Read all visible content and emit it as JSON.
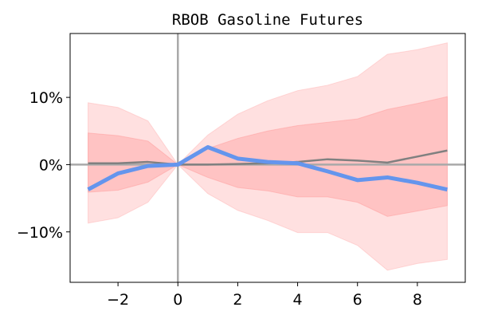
{
  "chart_data": {
    "type": "line",
    "title": "RBOB Gasoline Futures",
    "xlabel": "",
    "ylabel": "",
    "xlim": [
      -3.6,
      9.6
    ],
    "ylim": [
      -17.5,
      19.5
    ],
    "xticks": [
      -2,
      0,
      2,
      4,
      6,
      8
    ],
    "xtick_labels": [
      "−2",
      "0",
      "2",
      "4",
      "6",
      "8"
    ],
    "yticks": [
      -10,
      0,
      10
    ],
    "ytick_labels": [
      "−10%",
      "0%",
      "10%"
    ],
    "grid": false,
    "reference_lines": {
      "vertical_x": 0,
      "horizontal_y": 0
    },
    "x": [
      -3,
      -2,
      -1,
      0,
      1,
      2,
      3,
      4,
      5,
      6,
      7,
      8,
      9
    ],
    "series": [
      {
        "type": "line",
        "color": "#6495ed",
        "values": [
          -3.7,
          -1.3,
          -0.2,
          0,
          2.6,
          0.9,
          0.4,
          0.2,
          -1.0,
          -2.3,
          -1.9,
          -2.7,
          -3.7
        ]
      },
      {
        "type": "line",
        "color": "#808080",
        "values": [
          0.2,
          0.2,
          0.4,
          0,
          0.0,
          0.1,
          0.2,
          0.4,
          0.8,
          0.6,
          0.3,
          1.2,
          2.1
        ]
      },
      {
        "type": "band",
        "color": "#ffb6b6",
        "lower": [
          -8.7,
          -7.9,
          -5.6,
          0,
          -4.3,
          -6.8,
          -8.3,
          -10.1,
          -10.1,
          -12.0,
          -15.7,
          -14.7,
          -14.1
        ],
        "upper": [
          9.2,
          8.5,
          6.5,
          0,
          4.4,
          7.5,
          9.5,
          11.0,
          11.8,
          13.1,
          16.4,
          17.1,
          18.1
        ]
      },
      {
        "type": "band",
        "color": "#ff9c9c",
        "lower": [
          -4.1,
          -3.8,
          -2.6,
          0,
          -1.9,
          -3.4,
          -3.9,
          -4.8,
          -4.8,
          -5.6,
          -7.7,
          -6.9,
          -6.1
        ],
        "upper": [
          4.7,
          4.3,
          3.5,
          0,
          2.4,
          3.9,
          5.0,
          5.8,
          6.3,
          6.8,
          8.2,
          9.1,
          10.1
        ]
      }
    ]
  }
}
